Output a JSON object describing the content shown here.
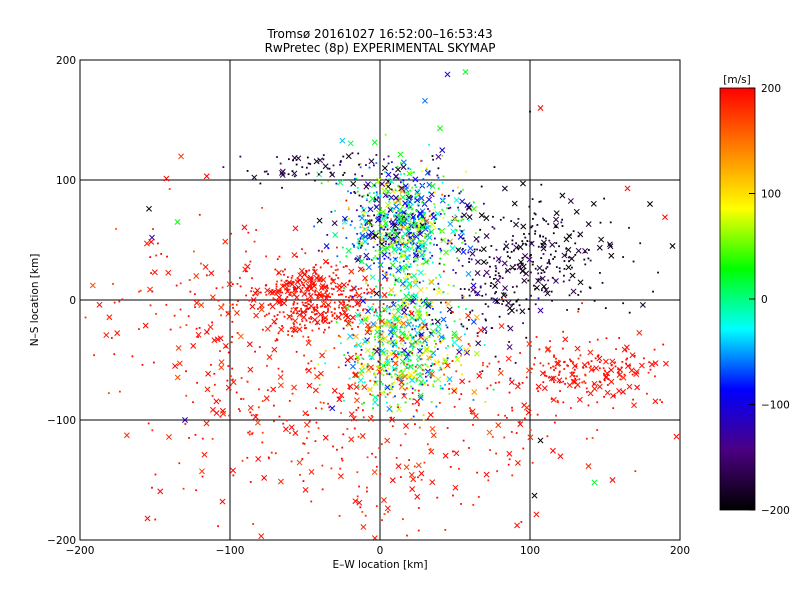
{
  "chart_data": {
    "type": "scatter",
    "title": "Tromsø 20161027 16:52:00–16:53:43",
    "subtitle": "RwPretec (8p) EXPERIMENTAL SKYMAP",
    "xlabel": "E–W location [km]",
    "ylabel": "N–S location [km]",
    "xlim": [
      -200,
      200
    ],
    "ylim": [
      -200,
      200
    ],
    "xticks": [
      -200,
      -100,
      0,
      100,
      200
    ],
    "yticks": [
      -200,
      -100,
      0,
      100,
      200
    ],
    "xtick_labels": [
      "−200",
      "−100",
      "0",
      "100",
      "200"
    ],
    "ytick_labels": [
      "−200",
      "−100",
      "0",
      "100",
      "200"
    ],
    "grid": true,
    "markers": [
      "dot",
      "x"
    ],
    "colorbar": {
      "label": "[m/s]",
      "range": [
        -200,
        200
      ],
      "ticks": [
        200,
        100,
        0,
        -100,
        -200
      ],
      "tick_labels": [
        "200",
        "100",
        "0",
        "−100",
        "−200"
      ],
      "colors": [
        "#000000",
        "#4b0082",
        "#0000ff",
        "#00ffff",
        "#00ff00",
        "#ffff00",
        "#ff8000",
        "#ff0000"
      ]
    },
    "clusters": [
      {
        "name": "central north cluster",
        "cx": 12,
        "cy": 65,
        "sx": 20,
        "sy": 22,
        "n": 650,
        "velocity_mean": -40,
        "velocity_spread": 140
      },
      {
        "name": "central south cluster",
        "cx": 15,
        "cy": -45,
        "sx": 20,
        "sy": 22,
        "n": 450,
        "velocity_mean": 40,
        "velocity_spread": 140
      },
      {
        "name": "central column",
        "cx": 18,
        "cy": 10,
        "sx": 15,
        "sy": 42,
        "n": 380,
        "velocity_mean": 10,
        "velocity_spread": 130
      },
      {
        "name": "west red patch",
        "cx": -45,
        "cy": 3,
        "sx": 20,
        "sy": 15,
        "n": 420,
        "velocity_mean": 195,
        "velocity_spread": 12
      },
      {
        "name": "east red patch",
        "cx": 140,
        "cy": -60,
        "sx": 25,
        "sy": 12,
        "n": 190,
        "velocity_mean": 195,
        "velocity_spread": 10
      },
      {
        "name": "southern scatter",
        "cx": 0,
        "cy": -110,
        "sx": 70,
        "sy": 45,
        "n": 360,
        "velocity_mean": 190,
        "velocity_spread": 20
      },
      {
        "name": "western scatter",
        "cx": -110,
        "cy": -20,
        "sx": 40,
        "sy": 50,
        "n": 200,
        "velocity_mean": 190,
        "velocity_spread": 20
      },
      {
        "name": "north-east black arc",
        "cx": 110,
        "cy": 40,
        "sx": 30,
        "sy": 25,
        "n": 220,
        "velocity_mean": -185,
        "velocity_spread": 30
      },
      {
        "name": "north-west black arc",
        "cx": -40,
        "cy": 110,
        "sx": 30,
        "sy": 7,
        "n": 70,
        "velocity_mean": -180,
        "velocity_spread": 30
      },
      {
        "name": "east-centre black group",
        "cx": 75,
        "cy": 10,
        "sx": 20,
        "sy": 30,
        "n": 140,
        "velocity_mean": -170,
        "velocity_spread": 40
      }
    ],
    "outliers": [
      {
        "x": 45,
        "y": 188,
        "v": -100,
        "m": "x"
      },
      {
        "x": 57,
        "y": 190,
        "v": 20,
        "m": "x"
      },
      {
        "x": 30,
        "y": 166,
        "v": -60,
        "m": "x"
      },
      {
        "x": 40,
        "y": 143,
        "v": 30,
        "m": "x"
      },
      {
        "x": 107,
        "y": 160,
        "v": 200,
        "m": "x"
      },
      {
        "x": 100,
        "y": 157,
        "v": -200,
        "m": "dot"
      },
      {
        "x": -154,
        "y": 76,
        "v": -200,
        "m": "x"
      },
      {
        "x": -152,
        "y": 52,
        "v": -130,
        "m": "x"
      },
      {
        "x": -135,
        "y": 65,
        "v": 30,
        "m": "x"
      },
      {
        "x": -187,
        "y": -4,
        "v": 200,
        "m": "x"
      },
      {
        "x": -155,
        "y": -182,
        "v": 200,
        "m": "x"
      },
      {
        "x": -105,
        "y": -168,
        "v": 200,
        "m": "x"
      },
      {
        "x": -98,
        "y": -142,
        "v": 200,
        "m": "x"
      },
      {
        "x": 107,
        "y": -117,
        "v": -200,
        "m": "x"
      },
      {
        "x": 103,
        "y": -163,
        "v": -200,
        "m": "x"
      },
      {
        "x": 143,
        "y": -152,
        "v": 20,
        "m": "x"
      },
      {
        "x": 155,
        "y": -150,
        "v": 200,
        "m": "x"
      },
      {
        "x": 195,
        "y": 45,
        "v": -200,
        "m": "x"
      },
      {
        "x": 190,
        "y": 69,
        "v": 200,
        "m": "x"
      },
      {
        "x": 180,
        "y": 80,
        "v": -200,
        "m": "x"
      },
      {
        "x": 165,
        "y": 93,
        "v": 200,
        "m": "x"
      },
      {
        "x": -130,
        "y": -100,
        "v": -120,
        "m": "x"
      },
      {
        "x": 35,
        "y": 120,
        "v": -200,
        "m": "dot"
      }
    ]
  }
}
